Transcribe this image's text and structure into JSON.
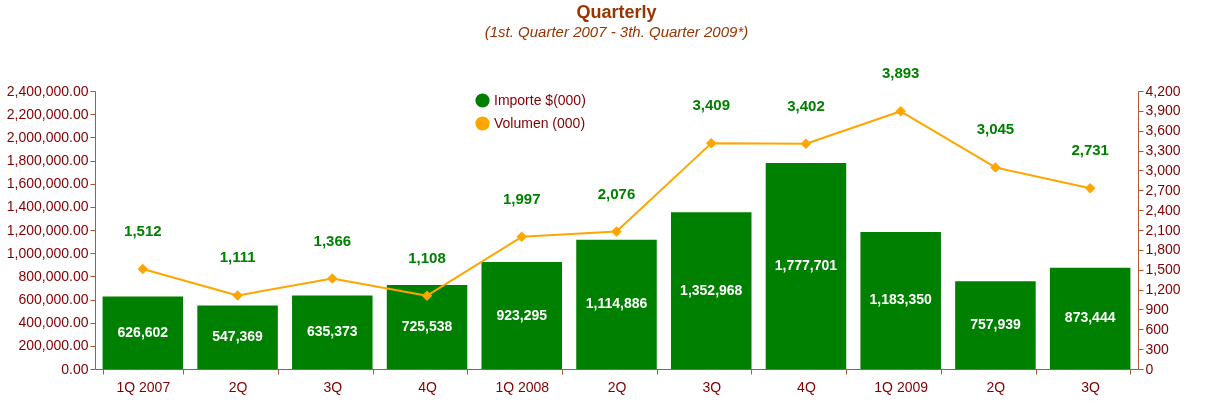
{
  "chart_data": {
    "type": "bar",
    "title": "Quarterly",
    "subtitle": "(1st. Quarter 2007 - 3th. Quarter 2009*)",
    "categories": [
      "1Q 2007",
      "2Q",
      "3Q",
      "4Q",
      "1Q 2008",
      "2Q",
      "3Q",
      "4Q",
      "1Q 2009",
      "2Q",
      "3Q"
    ],
    "series": [
      {
        "name": "Importe $(000)",
        "color": "#008000",
        "values": [
          626602,
          547369,
          635373,
          725538,
          923295,
          1114886,
          1352968,
          1777701,
          1183350,
          757939,
          873444
        ],
        "value_labels": [
          "626,602",
          "547,369",
          "635,373",
          "725,538",
          "923,295",
          "1,114,886",
          "1,352,968",
          "1,777,701",
          "1,183,350",
          "757,939",
          "873,444"
        ]
      },
      {
        "name": "Volumen (000)",
        "type": "line",
        "axis": "y2",
        "color": "#ffa500",
        "values": [
          1512,
          1111,
          1366,
          1108,
          1997,
          2076,
          3409,
          3402,
          3893,
          3045,
          2731
        ],
        "value_labels": [
          "1,512",
          "1,111",
          "1,366",
          "1,108",
          "1,997",
          "2,076",
          "3,409",
          "3,402",
          "3,893",
          "3,045",
          "2,731"
        ]
      }
    ],
    "ylim": [
      0,
      2400000
    ],
    "yticks": [
      {
        "value": 0,
        "label": "0.00"
      },
      {
        "value": 200000,
        "label": "200,000.00"
      },
      {
        "value": 400000,
        "label": "400,000.00"
      },
      {
        "value": 600000,
        "label": "600,000.00"
      },
      {
        "value": 800000,
        "label": "800,000.00"
      },
      {
        "value": 1000000,
        "label": "1,000,000.00"
      },
      {
        "value": 1200000,
        "label": "1,200,000.00"
      },
      {
        "value": 1400000,
        "label": "1,400,000.00"
      },
      {
        "value": 1600000,
        "label": "1,600,000.00"
      },
      {
        "value": 1800000,
        "label": "1,800,000.00"
      },
      {
        "value": 2000000,
        "label": "2,000,000.00"
      },
      {
        "value": 2200000,
        "label": "2,200,000.00"
      },
      {
        "value": 2400000,
        "label": "2,400,000.00"
      }
    ],
    "y2lim": [
      0,
      4200
    ],
    "y2ticks": [
      {
        "value": 0,
        "label": "0"
      },
      {
        "value": 300,
        "label": "300"
      },
      {
        "value": 600,
        "label": "600"
      },
      {
        "value": 900,
        "label": "900"
      },
      {
        "value": 1200,
        "label": "1,200"
      },
      {
        "value": 1500,
        "label": "1,500"
      },
      {
        "value": 1800,
        "label": "1,800"
      },
      {
        "value": 2100,
        "label": "2,100"
      },
      {
        "value": 2400,
        "label": "2,400"
      },
      {
        "value": 2700,
        "label": "2,700"
      },
      {
        "value": 3000,
        "label": "3,000"
      },
      {
        "value": 3300,
        "label": "3,300"
      },
      {
        "value": 3600,
        "label": "3,600"
      },
      {
        "value": 3900,
        "label": "3,900"
      },
      {
        "value": 4200,
        "label": "4,200"
      }
    ],
    "legend": "top",
    "marker": "diamond"
  }
}
